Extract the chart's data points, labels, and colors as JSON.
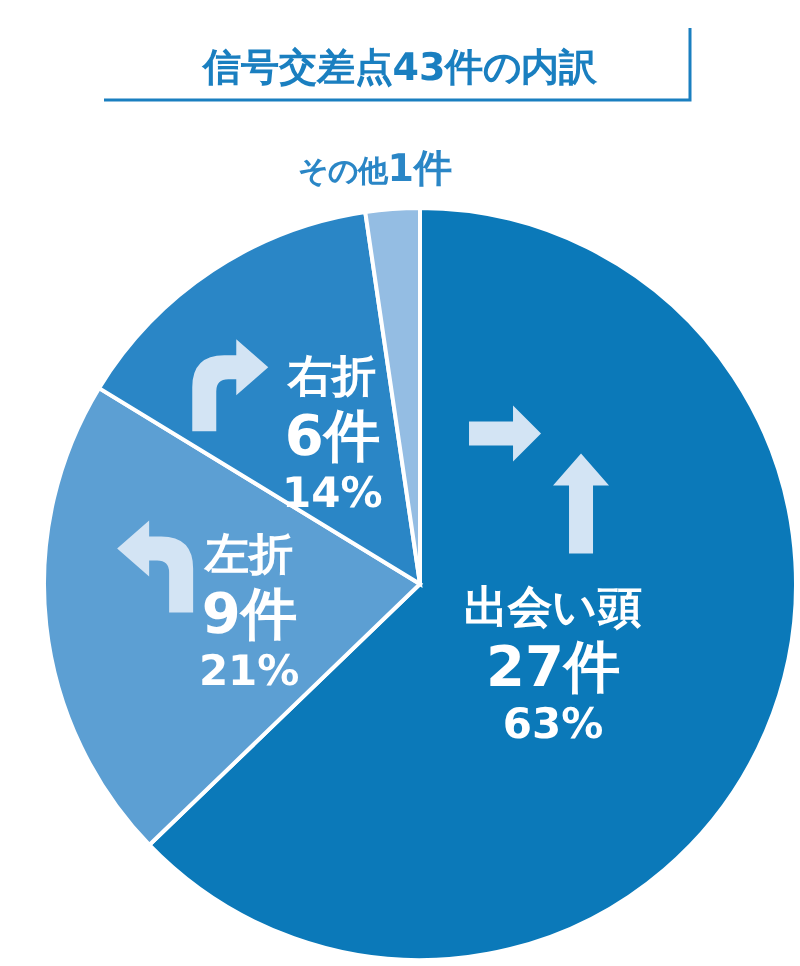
{
  "chart_data": {
    "type": "pie",
    "title": "信号交差点43件の内訳",
    "categories": [
      "出会い頭",
      "左折",
      "右折",
      "その他"
    ],
    "values": [
      27,
      9,
      6,
      1
    ],
    "colors": [
      "#0b79b9",
      "#5c9fd3",
      "#2a86c6",
      "#94bde3"
    ],
    "value_labels": [
      "27件\n63%",
      "9件\n21%",
      "6件\n14%",
      "1件"
    ]
  }
}
